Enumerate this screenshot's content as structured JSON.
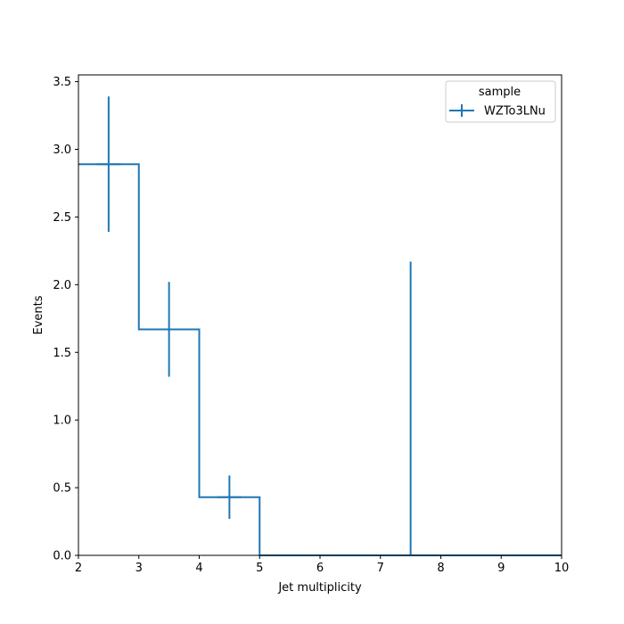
{
  "chart_data": {
    "type": "histogram",
    "title": "",
    "xlabel": "Jet multiplicity",
    "ylabel": "Events",
    "xlim": [
      2,
      10
    ],
    "ylim": [
      0,
      3.55
    ],
    "xticks": [
      2,
      3,
      4,
      5,
      6,
      7,
      8,
      9,
      10
    ],
    "yticks": [
      0.0,
      0.5,
      1.0,
      1.5,
      2.0,
      2.5,
      3.0,
      3.5
    ],
    "ytick_labels": [
      "0.0",
      "0.5",
      "1.0",
      "1.5",
      "2.0",
      "2.5",
      "3.0",
      "3.5"
    ],
    "grid": false,
    "legend": {
      "title": "sample",
      "placement": "top-right",
      "entries": [
        "WZTo3LNu"
      ]
    },
    "bin_edges": [
      2,
      3,
      4,
      5,
      6,
      7,
      8,
      9,
      10
    ],
    "series": [
      {
        "name": "WZTo3LNu",
        "color": "#1f77b4",
        "values": [
          2.89,
          1.67,
          0.43,
          0.0,
          0.0,
          0.0,
          0.0,
          0.0
        ],
        "errors": [
          0.5,
          0.35,
          0.16,
          0.0,
          0.0,
          2.17,
          0.0,
          0.0
        ]
      }
    ]
  }
}
